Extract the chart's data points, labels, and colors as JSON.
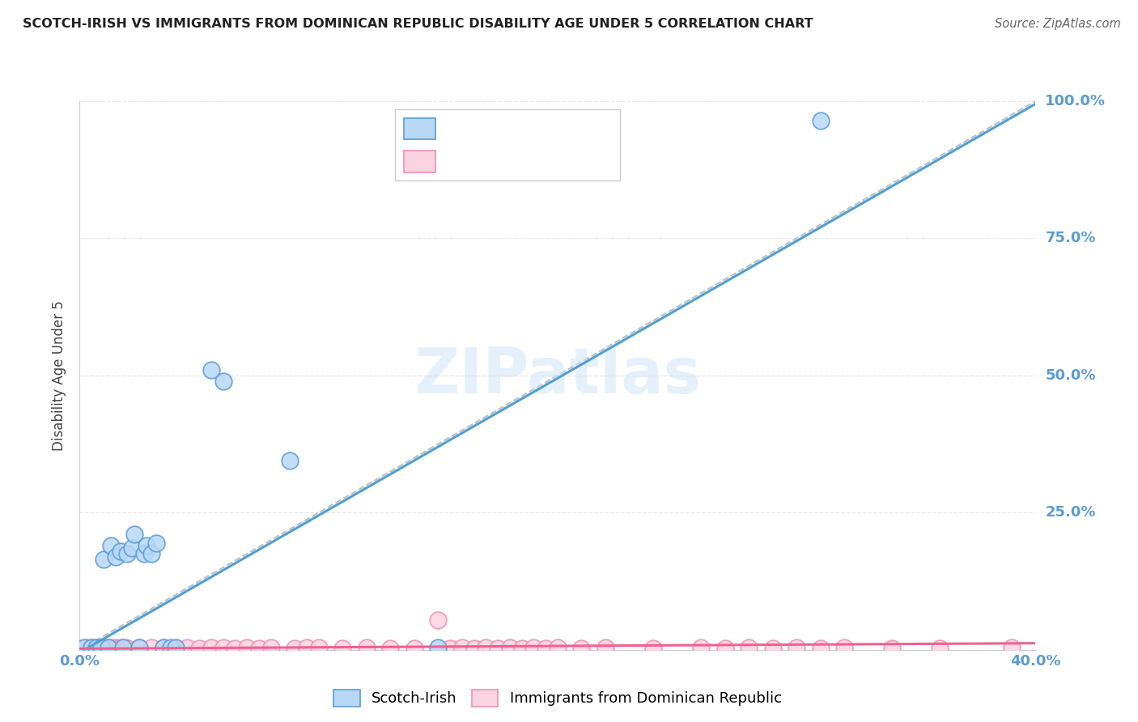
{
  "title": "SCOTCH-IRISH VS IMMIGRANTS FROM DOMINICAN REPUBLIC DISABILITY AGE UNDER 5 CORRELATION CHART",
  "source": "Source: ZipAtlas.com",
  "ylabel": "Disability Age Under 5",
  "xlim": [
    0.0,
    0.4
  ],
  "ylim": [
    0.0,
    1.0
  ],
  "legend_label1": "Scotch-Irish",
  "legend_label2": "Immigrants from Dominican Republic",
  "watermark": "ZIPatlas",
  "blue_face": "#b8d8f5",
  "blue_edge": "#5b9bd5",
  "pink_face": "#fad4e0",
  "pink_edge": "#f48fb1",
  "blue_line": "#4f9fd4",
  "pink_line": "#f06090",
  "diag_color": "#b0b0b0",
  "grid_color": "#e8e8e8",
  "tick_color": "#5b9bd5",
  "scotch_irish_x": [
    0.002,
    0.005,
    0.007,
    0.009,
    0.01,
    0.012,
    0.013,
    0.015,
    0.017,
    0.018,
    0.02,
    0.022,
    0.023,
    0.025,
    0.027,
    0.028,
    0.03,
    0.032,
    0.035,
    0.038,
    0.04,
    0.055,
    0.06,
    0.088,
    0.15,
    0.31
  ],
  "scotch_irish_y": [
    0.004,
    0.004,
    0.004,
    0.004,
    0.165,
    0.004,
    0.19,
    0.17,
    0.18,
    0.004,
    0.175,
    0.185,
    0.21,
    0.004,
    0.175,
    0.19,
    0.175,
    0.195,
    0.004,
    0.004,
    0.004,
    0.51,
    0.49,
    0.345,
    0.004,
    0.965
  ],
  "dominican_x": [
    0.001,
    0.002,
    0.003,
    0.004,
    0.005,
    0.006,
    0.007,
    0.008,
    0.009,
    0.01,
    0.011,
    0.012,
    0.013,
    0.014,
    0.015,
    0.016,
    0.017,
    0.018,
    0.019,
    0.02,
    0.025,
    0.03,
    0.035,
    0.04,
    0.045,
    0.05,
    0.055,
    0.06,
    0.065,
    0.07,
    0.075,
    0.08,
    0.09,
    0.095,
    0.1,
    0.11,
    0.12,
    0.13,
    0.14,
    0.15,
    0.155,
    0.16,
    0.165,
    0.17,
    0.175,
    0.18,
    0.185,
    0.19,
    0.195,
    0.2,
    0.21,
    0.22,
    0.24,
    0.26,
    0.27,
    0.28,
    0.29,
    0.3,
    0.31,
    0.32,
    0.34,
    0.36,
    0.39
  ],
  "dominican_y": [
    0.003,
    0.003,
    0.004,
    0.003,
    0.004,
    0.003,
    0.004,
    0.003,
    0.004,
    0.003,
    0.004,
    0.003,
    0.004,
    0.003,
    0.004,
    0.003,
    0.004,
    0.003,
    0.004,
    0.003,
    0.004,
    0.004,
    0.004,
    0.003,
    0.004,
    0.003,
    0.004,
    0.004,
    0.003,
    0.004,
    0.003,
    0.004,
    0.003,
    0.004,
    0.004,
    0.003,
    0.004,
    0.003,
    0.003,
    0.055,
    0.003,
    0.004,
    0.003,
    0.004,
    0.003,
    0.004,
    0.003,
    0.004,
    0.003,
    0.004,
    0.003,
    0.004,
    0.003,
    0.004,
    0.003,
    0.004,
    0.003,
    0.004,
    0.003,
    0.004,
    0.003,
    0.003,
    0.004
  ],
  "blue_trendline_x": [
    0.0,
    0.4
  ],
  "blue_trendline_y": [
    -0.005,
    0.995
  ],
  "pink_trendline_x": [
    0.0,
    0.4
  ],
  "pink_trendline_y": [
    0.002,
    0.012
  ]
}
